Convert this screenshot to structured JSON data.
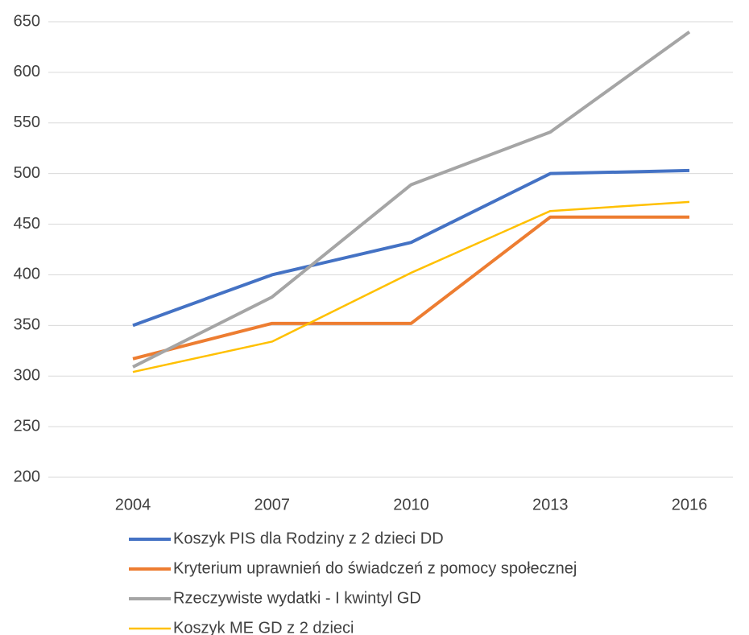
{
  "chart_data": {
    "type": "line",
    "x": [
      "2004",
      "2007",
      "2010",
      "2013",
      "2016"
    ],
    "series": [
      {
        "name": "Koszyk PIS dla Rodziny z 2 dzieci DD",
        "color": "#4472c4",
        "values": [
          350,
          400,
          432,
          500,
          503
        ]
      },
      {
        "name": "Kryterium uprawnień do świadczeń z pomocy społecznej",
        "color": "#ed7d31",
        "values": [
          317,
          352,
          352,
          457,
          457
        ]
      },
      {
        "name": "Rzeczywiste wydatki - I kwintyl GD",
        "color": "#a5a5a5",
        "values": [
          309,
          378,
          489,
          541,
          640
        ]
      },
      {
        "name": "Koszyk ME GD z 2 dzieci",
        "color": "#ffc000",
        "values": [
          304,
          334,
          402,
          463,
          472
        ]
      }
    ],
    "ylim": [
      200,
      650
    ],
    "yticks": [
      200,
      250,
      300,
      350,
      400,
      450,
      500,
      550,
      600,
      650
    ],
    "grid": true,
    "legend": "bottom"
  }
}
